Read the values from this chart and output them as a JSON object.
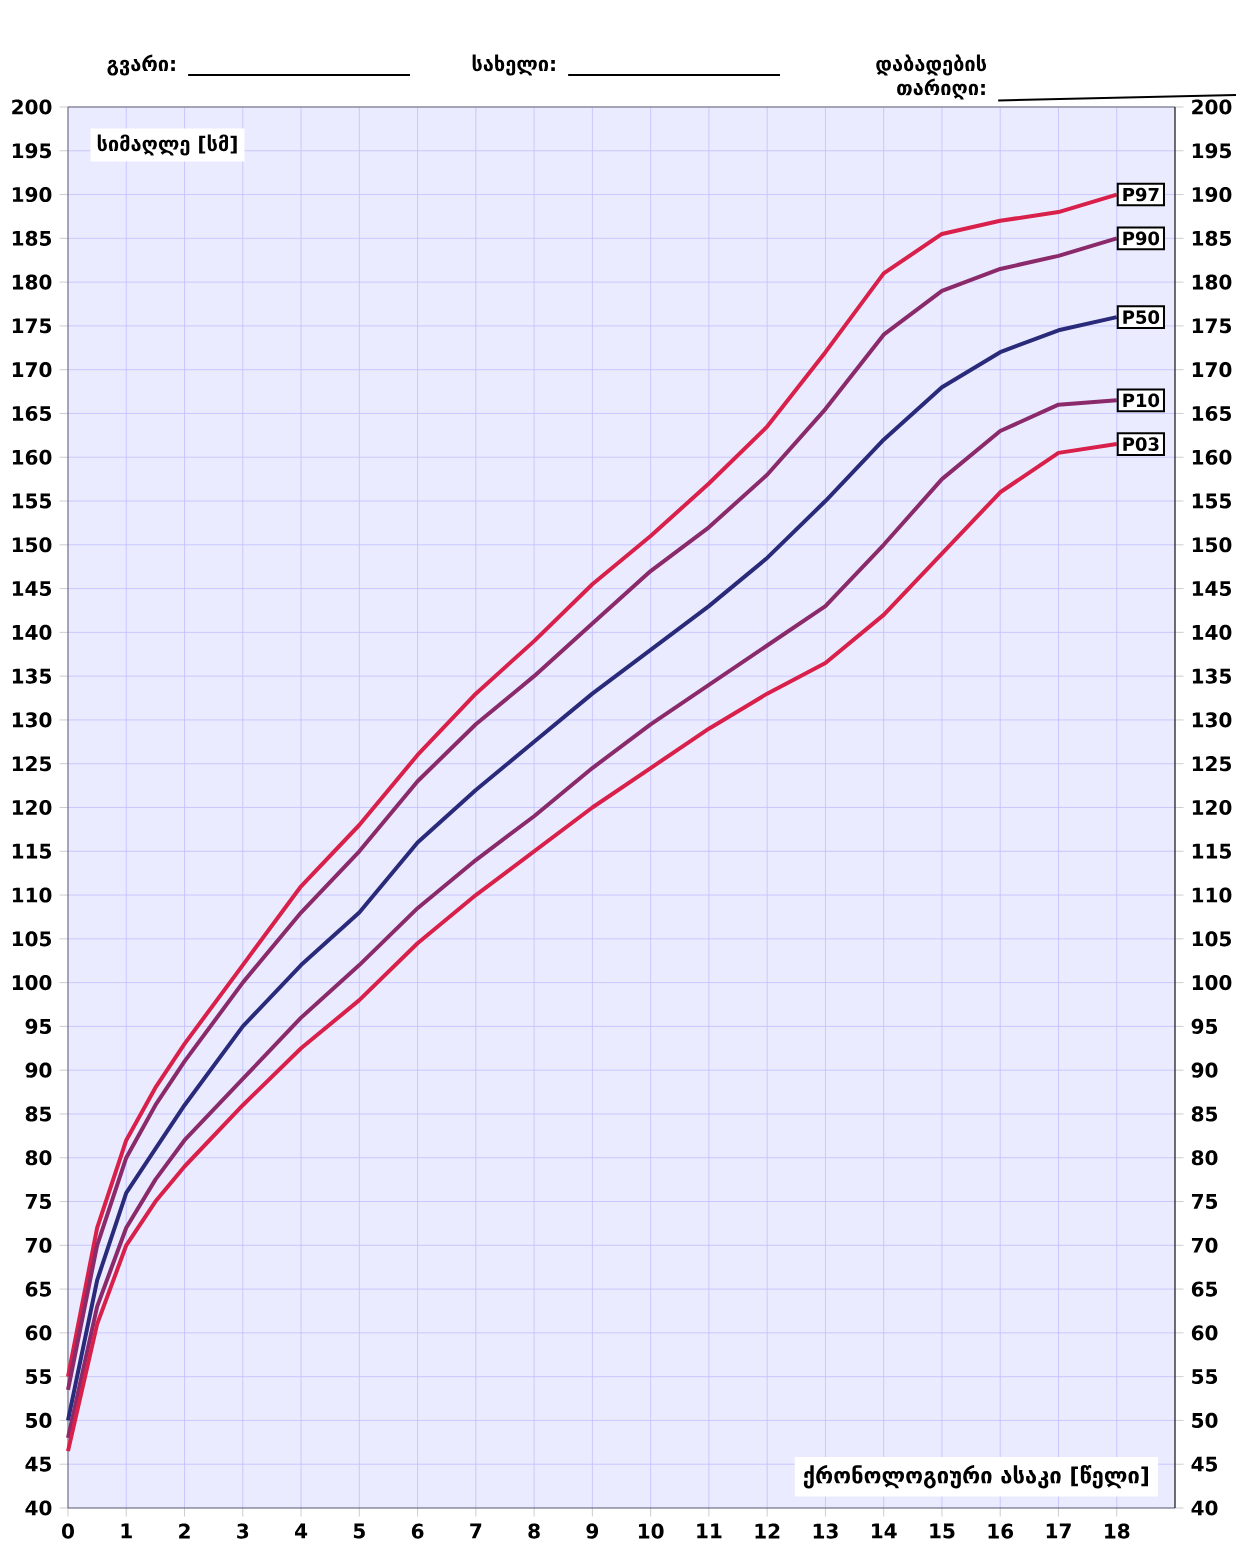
{
  "chart_data": {
    "type": "line",
    "annotations": [
      "გვარი:",
      "სახელი:",
      "დაბადების თარიღი:"
    ],
    "ylabel": "სიმაღლე [სმ]",
    "xlabel": "ქრონოლოგიური ასაკი [წელი]",
    "x": [
      0,
      0.5,
      1,
      1.5,
      2,
      3,
      4,
      5,
      6,
      7,
      8,
      9,
      10,
      11,
      12,
      13,
      14,
      15,
      16,
      17,
      18
    ],
    "series": [
      {
        "name": "P97",
        "color": "#d8204a",
        "values": [
          55,
          72,
          82,
          88,
          93,
          102,
          111,
          118,
          126,
          133,
          139,
          145.5,
          151,
          157,
          163.5,
          172,
          181,
          185.5,
          187,
          188,
          190
        ]
      },
      {
        "name": "P90",
        "color": "#8a2a6a",
        "values": [
          53.5,
          70,
          80,
          86,
          91,
          100,
          108,
          115,
          123,
          129.5,
          135,
          141,
          147,
          152,
          158,
          165.5,
          174,
          179,
          181.5,
          183,
          185
        ]
      },
      {
        "name": "P50",
        "color": "#2a2a7a",
        "values": [
          50,
          66,
          76,
          81,
          86,
          95,
          102,
          108,
          116,
          122,
          127.5,
          133,
          138,
          143,
          148.5,
          155,
          162,
          168,
          172,
          174.5,
          176
        ]
      },
      {
        "name": "P10",
        "color": "#8a2a6a",
        "values": [
          48,
          63,
          72,
          77.5,
          82,
          89,
          96,
          102,
          108.5,
          114,
          119,
          124.5,
          129.5,
          134,
          138.5,
          143,
          150,
          157.5,
          163,
          166,
          166.5
        ]
      },
      {
        "name": "P03",
        "color": "#d8204a",
        "values": [
          46.5,
          61,
          70,
          75,
          79,
          86,
          92.5,
          98,
          104.5,
          110,
          115,
          120,
          124.5,
          129,
          133,
          136.5,
          142,
          149,
          156,
          160.5,
          161.5
        ]
      }
    ],
    "xlim": [
      0,
      19
    ],
    "xticks": [
      0,
      1,
      2,
      3,
      4,
      5,
      6,
      7,
      8,
      9,
      10,
      11,
      12,
      13,
      14,
      15,
      16,
      17,
      18
    ],
    "ylim": [
      40,
      200
    ],
    "yticks": [
      40,
      45,
      50,
      55,
      60,
      65,
      70,
      75,
      80,
      85,
      90,
      95,
      100,
      105,
      110,
      115,
      120,
      125,
      130,
      135,
      140,
      145,
      150,
      155,
      160,
      165,
      170,
      175,
      180,
      185,
      190,
      195,
      200
    ],
    "y2lim": [
      40,
      200
    ],
    "y2ticks": [
      40,
      45,
      50,
      55,
      60,
      65,
      70,
      75,
      80,
      85,
      90,
      95,
      100,
      105,
      110,
      115,
      120,
      125,
      130,
      135,
      140,
      145,
      150,
      155,
      160,
      165,
      170,
      175,
      180,
      185,
      190,
      195,
      200
    ],
    "grid": true,
    "marker": "none",
    "line_style": "solid"
  }
}
